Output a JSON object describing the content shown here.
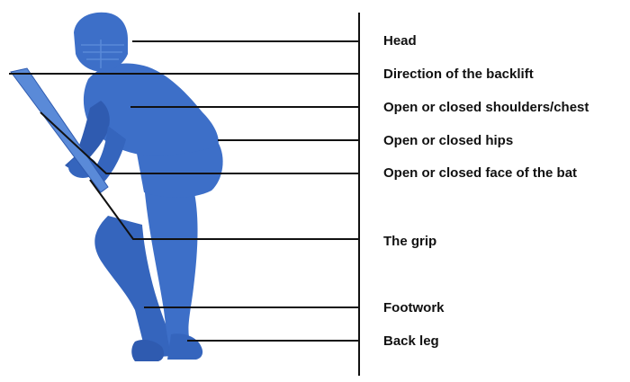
{
  "colors": {
    "figure_main": "#3d6fc8",
    "figure_dark": "#2f5bb0",
    "figure_light": "#5a8ad8",
    "lines": "#111111",
    "background": "#ffffff"
  },
  "figure": {
    "icon": "cricket-batsman-silhouette-icon"
  },
  "labels": [
    "Head",
    "Direction of the backlift",
    "Open or closed shoulders/chest",
    "Open or closed hips",
    "Open or closed face of the bat",
    "The  grip",
    "Footwork",
    "Back leg"
  ]
}
